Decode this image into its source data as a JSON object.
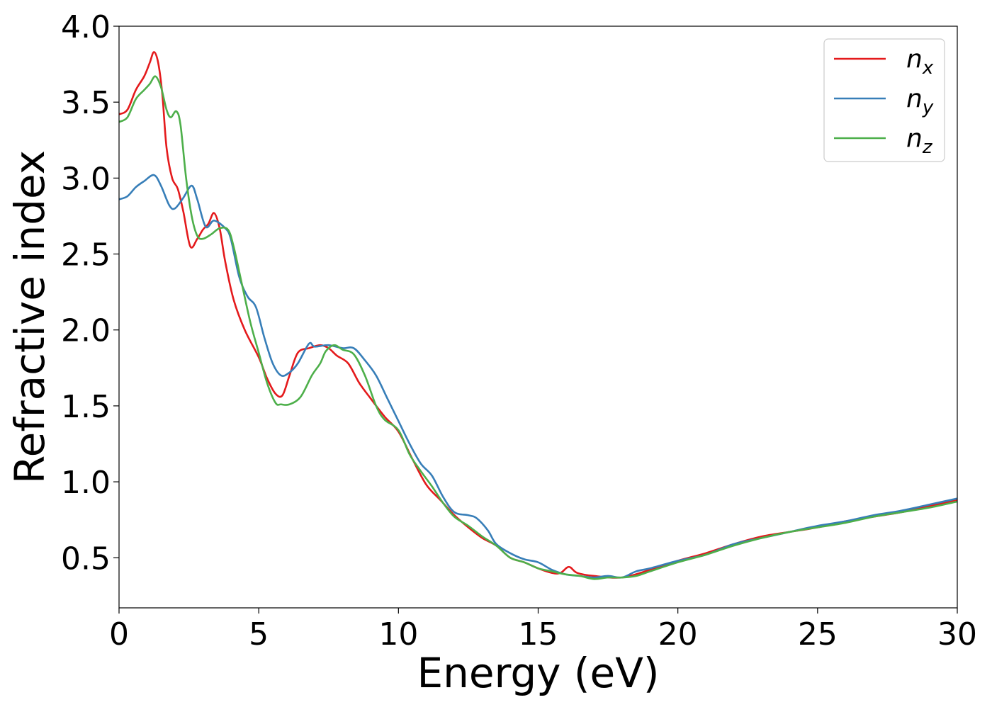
{
  "chart_data": {
    "type": "line",
    "title": "",
    "xlabel": "Energy (eV)",
    "ylabel": "Refractive index",
    "xlim": [
      0,
      30
    ],
    "ylim": [
      0.17,
      4.0
    ],
    "xticks": [
      "0",
      "5",
      "10",
      "15",
      "20",
      "25",
      "30"
    ],
    "yticks": [
      "0.5",
      "1.0",
      "1.5",
      "2.0",
      "2.5",
      "3.0",
      "3.5",
      "4.0"
    ],
    "grid": false,
    "legend_position": "top-right",
    "series": [
      {
        "name": "n",
        "subscript": "x",
        "color": "#e41a1c",
        "points": [
          [
            0,
            3.42
          ],
          [
            0.3,
            3.45
          ],
          [
            0.6,
            3.58
          ],
          [
            0.9,
            3.67
          ],
          [
            1.1,
            3.76
          ],
          [
            1.25,
            3.83
          ],
          [
            1.4,
            3.76
          ],
          [
            1.55,
            3.55
          ],
          [
            1.7,
            3.2
          ],
          [
            1.9,
            3.0
          ],
          [
            2.1,
            2.93
          ],
          [
            2.3,
            2.78
          ],
          [
            2.55,
            2.55
          ],
          [
            2.8,
            2.6
          ],
          [
            3.0,
            2.66
          ],
          [
            3.2,
            2.7
          ],
          [
            3.4,
            2.77
          ],
          [
            3.6,
            2.67
          ],
          [
            3.8,
            2.45
          ],
          [
            4.1,
            2.2
          ],
          [
            4.5,
            2.0
          ],
          [
            5.0,
            1.82
          ],
          [
            5.3,
            1.68
          ],
          [
            5.6,
            1.58
          ],
          [
            5.85,
            1.57
          ],
          [
            6.1,
            1.7
          ],
          [
            6.4,
            1.85
          ],
          [
            6.8,
            1.88
          ],
          [
            7.2,
            1.9
          ],
          [
            7.5,
            1.88
          ],
          [
            7.8,
            1.83
          ],
          [
            8.2,
            1.78
          ],
          [
            8.6,
            1.65
          ],
          [
            9.0,
            1.55
          ],
          [
            9.5,
            1.43
          ],
          [
            10.0,
            1.33
          ],
          [
            10.5,
            1.15
          ],
          [
            11.0,
            0.98
          ],
          [
            11.5,
            0.88
          ],
          [
            12.0,
            0.78
          ],
          [
            12.5,
            0.7
          ],
          [
            13.0,
            0.63
          ],
          [
            13.5,
            0.58
          ],
          [
            14.0,
            0.5
          ],
          [
            14.5,
            0.47
          ],
          [
            15.0,
            0.43
          ],
          [
            15.5,
            0.4
          ],
          [
            15.8,
            0.4
          ],
          [
            16.1,
            0.44
          ],
          [
            16.4,
            0.4
          ],
          [
            17.0,
            0.38
          ],
          [
            18.0,
            0.37
          ],
          [
            19.0,
            0.42
          ],
          [
            20.0,
            0.48
          ],
          [
            21.0,
            0.53
          ],
          [
            22.0,
            0.59
          ],
          [
            23.0,
            0.64
          ],
          [
            24.0,
            0.67
          ],
          [
            25.0,
            0.7
          ],
          [
            26.0,
            0.74
          ],
          [
            27.0,
            0.77
          ],
          [
            28.0,
            0.8
          ],
          [
            29.0,
            0.84
          ],
          [
            30.0,
            0.88
          ]
        ]
      },
      {
        "name": "n",
        "subscript": "y",
        "color": "#377eb8",
        "points": [
          [
            0,
            2.86
          ],
          [
            0.3,
            2.88
          ],
          [
            0.6,
            2.94
          ],
          [
            0.9,
            2.98
          ],
          [
            1.25,
            3.02
          ],
          [
            1.5,
            2.95
          ],
          [
            1.8,
            2.82
          ],
          [
            2.0,
            2.8
          ],
          [
            2.3,
            2.87
          ],
          [
            2.6,
            2.95
          ],
          [
            2.8,
            2.86
          ],
          [
            3.1,
            2.68
          ],
          [
            3.4,
            2.72
          ],
          [
            3.8,
            2.67
          ],
          [
            4.0,
            2.6
          ],
          [
            4.3,
            2.35
          ],
          [
            4.6,
            2.22
          ],
          [
            4.9,
            2.15
          ],
          [
            5.2,
            1.95
          ],
          [
            5.5,
            1.78
          ],
          [
            5.8,
            1.7
          ],
          [
            6.1,
            1.72
          ],
          [
            6.4,
            1.78
          ],
          [
            6.8,
            1.91
          ],
          [
            7.0,
            1.89
          ],
          [
            7.5,
            1.9
          ],
          [
            8.0,
            1.88
          ],
          [
            8.4,
            1.88
          ],
          [
            8.8,
            1.8
          ],
          [
            9.2,
            1.7
          ],
          [
            9.6,
            1.55
          ],
          [
            10.0,
            1.4
          ],
          [
            10.4,
            1.25
          ],
          [
            10.8,
            1.12
          ],
          [
            11.2,
            1.04
          ],
          [
            11.6,
            0.9
          ],
          [
            12.0,
            0.8
          ],
          [
            12.5,
            0.78
          ],
          [
            12.8,
            0.76
          ],
          [
            13.2,
            0.68
          ],
          [
            13.5,
            0.59
          ],
          [
            14.0,
            0.53
          ],
          [
            14.5,
            0.49
          ],
          [
            15.0,
            0.47
          ],
          [
            15.5,
            0.42
          ],
          [
            16.0,
            0.39
          ],
          [
            16.5,
            0.38
          ],
          [
            17.0,
            0.37
          ],
          [
            17.5,
            0.38
          ],
          [
            18.0,
            0.37
          ],
          [
            18.5,
            0.41
          ],
          [
            19.0,
            0.43
          ],
          [
            20.0,
            0.48
          ],
          [
            21.0,
            0.52
          ],
          [
            22.0,
            0.59
          ],
          [
            23.0,
            0.63
          ],
          [
            24.0,
            0.67
          ],
          [
            25.0,
            0.71
          ],
          [
            26.0,
            0.74
          ],
          [
            27.0,
            0.78
          ],
          [
            28.0,
            0.81
          ],
          [
            29.0,
            0.85
          ],
          [
            30.0,
            0.89
          ]
        ]
      },
      {
        "name": "n",
        "subscript": "z",
        "color": "#4daf4a",
        "points": [
          [
            0,
            3.37
          ],
          [
            0.3,
            3.4
          ],
          [
            0.6,
            3.52
          ],
          [
            0.9,
            3.58
          ],
          [
            1.1,
            3.62
          ],
          [
            1.3,
            3.67
          ],
          [
            1.5,
            3.6
          ],
          [
            1.7,
            3.45
          ],
          [
            1.85,
            3.4
          ],
          [
            2.05,
            3.44
          ],
          [
            2.2,
            3.35
          ],
          [
            2.4,
            3.0
          ],
          [
            2.6,
            2.75
          ],
          [
            2.8,
            2.62
          ],
          [
            3.0,
            2.6
          ],
          [
            3.3,
            2.63
          ],
          [
            3.6,
            2.67
          ],
          [
            3.9,
            2.66
          ],
          [
            4.1,
            2.55
          ],
          [
            4.4,
            2.3
          ],
          [
            4.7,
            2.05
          ],
          [
            5.0,
            1.85
          ],
          [
            5.3,
            1.65
          ],
          [
            5.6,
            1.52
          ],
          [
            5.8,
            1.51
          ],
          [
            6.1,
            1.51
          ],
          [
            6.5,
            1.56
          ],
          [
            6.9,
            1.7
          ],
          [
            7.2,
            1.78
          ],
          [
            7.4,
            1.86
          ],
          [
            7.7,
            1.9
          ],
          [
            8.0,
            1.87
          ],
          [
            8.4,
            1.84
          ],
          [
            8.8,
            1.7
          ],
          [
            9.2,
            1.5
          ],
          [
            9.5,
            1.41
          ],
          [
            10.0,
            1.34
          ],
          [
            10.4,
            1.18
          ],
          [
            10.8,
            1.07
          ],
          [
            11.2,
            0.97
          ],
          [
            11.6,
            0.86
          ],
          [
            12.0,
            0.77
          ],
          [
            12.5,
            0.71
          ],
          [
            13.0,
            0.64
          ],
          [
            13.5,
            0.58
          ],
          [
            14.0,
            0.5
          ],
          [
            14.5,
            0.47
          ],
          [
            15.0,
            0.43
          ],
          [
            15.5,
            0.41
          ],
          [
            16.0,
            0.39
          ],
          [
            16.5,
            0.38
          ],
          [
            17.0,
            0.36
          ],
          [
            17.5,
            0.37
          ],
          [
            18.0,
            0.37
          ],
          [
            18.5,
            0.38
          ],
          [
            19.0,
            0.41
          ],
          [
            20.0,
            0.47
          ],
          [
            21.0,
            0.52
          ],
          [
            22.0,
            0.58
          ],
          [
            23.0,
            0.63
          ],
          [
            24.0,
            0.67
          ],
          [
            25.0,
            0.7
          ],
          [
            26.0,
            0.73
          ],
          [
            27.0,
            0.77
          ],
          [
            28.0,
            0.8
          ],
          [
            29.0,
            0.83
          ],
          [
            30.0,
            0.87
          ]
        ]
      }
    ]
  }
}
